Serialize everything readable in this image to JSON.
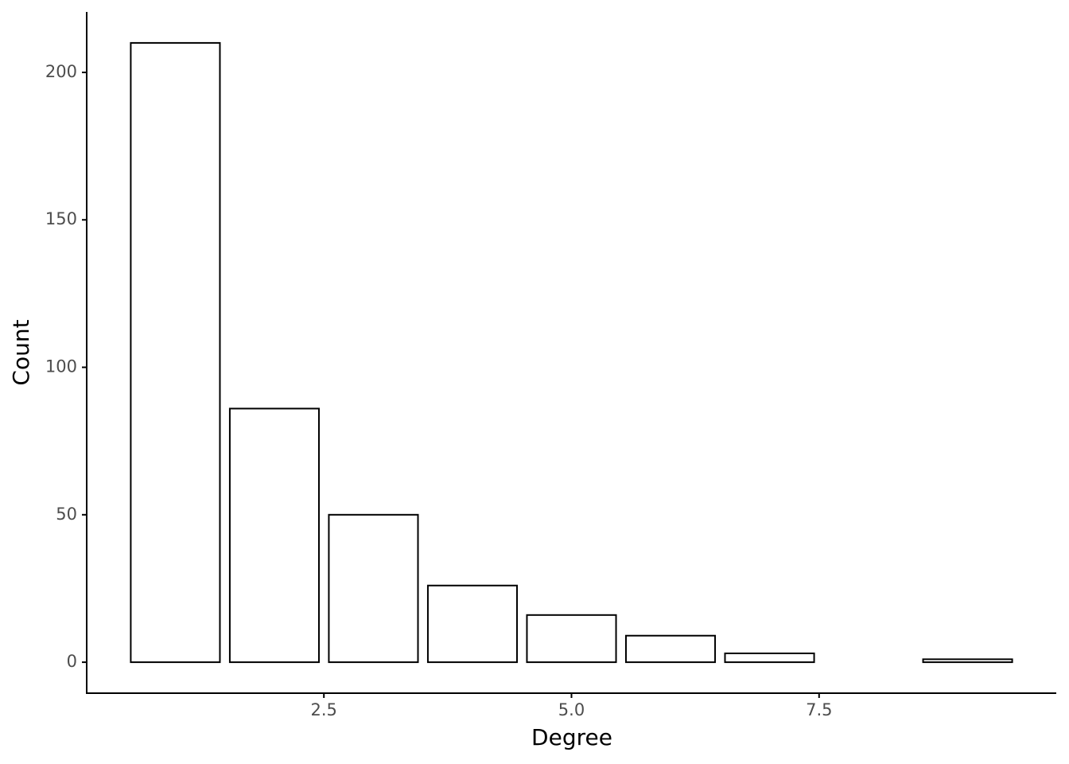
{
  "chart_data": {
    "type": "bar",
    "x_label": "Degree",
    "y_label": "Count",
    "x": [
      1,
      2,
      3,
      4,
      5,
      6,
      7,
      9
    ],
    "values": [
      210,
      86,
      50,
      26,
      16,
      9,
      3,
      1
    ],
    "color": "#ffffff",
    "edge_color": "#000000",
    "xlim": [
      0.105,
      9.895
    ],
    "xticks": [
      {
        "value": 2.5,
        "label": "2.5"
      },
      {
        "value": 5,
        "label": "5.0"
      },
      {
        "value": 7.5,
        "label": "7.5"
      }
    ],
    "ylim": [
      -10.5,
      220.5
    ],
    "yticks": [
      0,
      50,
      100,
      150,
      200
    ],
    "grid": false
  }
}
